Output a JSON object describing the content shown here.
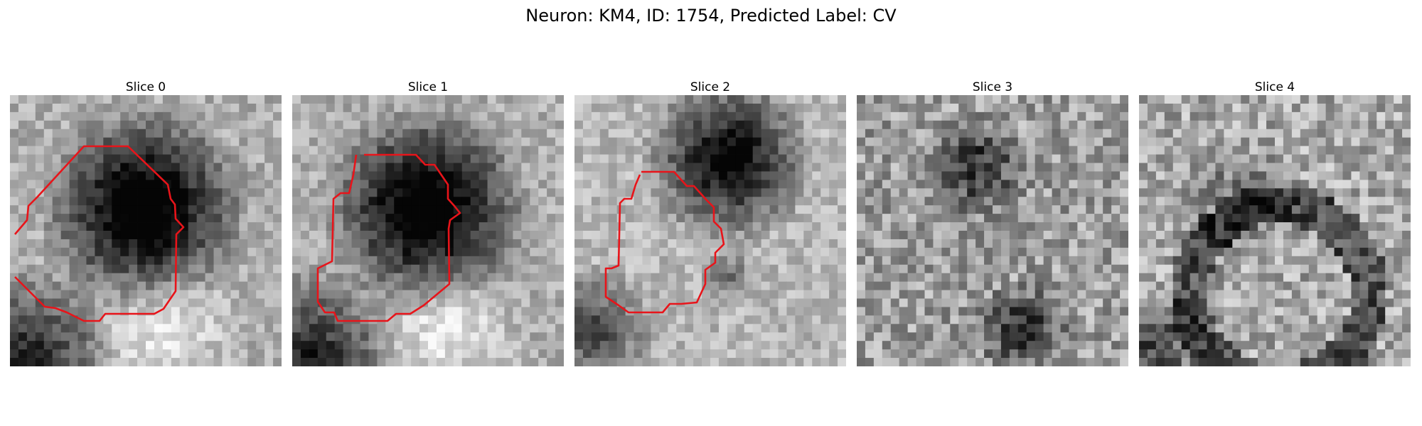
{
  "figure": {
    "title": "Neuron: KM4, ID: 1754, Predicted Label: CV"
  },
  "panels": [
    {
      "title": "Slice 0",
      "has_outline": true,
      "theme": "dark-cell"
    },
    {
      "title": "Slice 1",
      "has_outline": true,
      "theme": "dark-cell"
    },
    {
      "title": "Slice 2",
      "has_outline": true,
      "theme": "mixed"
    },
    {
      "title": "Slice 3",
      "has_outline": false,
      "theme": "noisy"
    },
    {
      "title": "Slice 4",
      "has_outline": false,
      "theme": "noisy-ring"
    }
  ],
  "colors": {
    "outline": "#e8141a"
  }
}
